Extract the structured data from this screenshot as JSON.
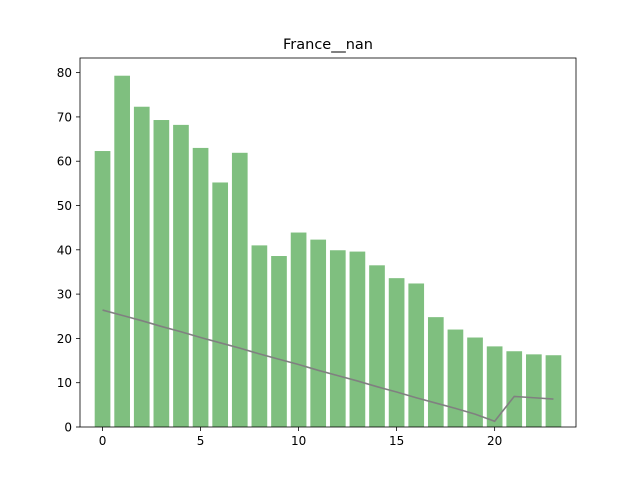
{
  "chart_data": {
    "type": "bar",
    "title": "France__nan",
    "xlabel": "",
    "ylabel": "",
    "x": [
      0,
      1,
      2,
      3,
      4,
      5,
      6,
      7,
      8,
      9,
      10,
      11,
      12,
      13,
      14,
      15,
      16,
      17,
      18,
      19,
      20,
      21,
      22,
      23
    ],
    "bar_values": [
      62.3,
      79.3,
      72.3,
      69.3,
      68.2,
      63.0,
      55.2,
      61.9,
      41.0,
      38.6,
      43.9,
      42.3,
      39.9,
      39.6,
      36.5,
      33.6,
      32.4,
      24.8,
      22.0,
      20.2,
      18.2,
      17.1,
      16.4,
      16.2
    ],
    "line_values": [
      26.4,
      25.2,
      24.0,
      22.7,
      21.5,
      20.2,
      19.0,
      17.8,
      16.5,
      15.3,
      14.1,
      12.8,
      11.6,
      10.4,
      9.1,
      7.9,
      6.6,
      5.4,
      4.2,
      2.9,
      1.3,
      6.9,
      6.6,
      6.3
    ],
    "xlim": [
      -1.15,
      24.15
    ],
    "ylim": [
      0,
      83.3
    ],
    "xticks": [
      0,
      5,
      10,
      15,
      20
    ],
    "yticks": [
      0,
      10,
      20,
      30,
      40,
      50,
      60,
      70,
      80
    ],
    "grid": false,
    "colors": {
      "bars": "#7fbf7f",
      "line": "#808080",
      "axes": "#000000"
    }
  }
}
